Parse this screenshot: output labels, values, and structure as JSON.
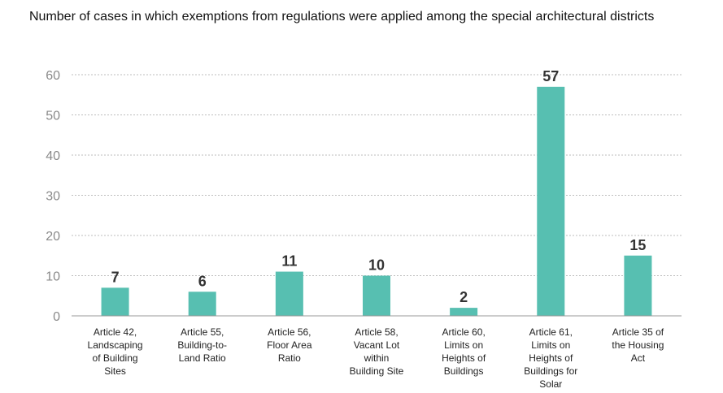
{
  "chart_data": {
    "type": "bar",
    "title": "Number of cases in which exemptions from regulations were applied among the special architectural districts",
    "xlabel": "",
    "ylabel": "",
    "ylim": [
      0,
      60
    ],
    "yticks": [
      "0",
      "10",
      "20",
      "30",
      "40",
      "50",
      "60"
    ],
    "grid": true,
    "legend": "none",
    "bar_color": "#57bfb1",
    "categories": [
      "Article 42, Landscaping of Building Sites",
      "Article 55, Building-to-Land Ratio",
      "Article 56, Floor Area Ratio",
      "Article 58, Vacant Lot within Building Site",
      "Article 60, Limits on Heights of Buildings",
      "Article 61, Limits on Heights of Buildings for Solar",
      "Article 35 of the Housing Act"
    ],
    "category_lines": [
      [
        "Article 42,",
        "Landscaping",
        "of Building",
        "Sites"
      ],
      [
        "Article 55,",
        "Building-to-",
        "Land Ratio"
      ],
      [
        "Article 56,",
        "Floor Area",
        "Ratio"
      ],
      [
        "Article 58,",
        "Vacant Lot",
        "within",
        "Building Site"
      ],
      [
        "Article 60,",
        "Limits on",
        "Heights of",
        "Buildings"
      ],
      [
        "Article 61,",
        "Limits on",
        "Heights of",
        "Buildings for",
        "Solar"
      ],
      [
        "Article 35 of",
        "the Housing",
        "Act"
      ]
    ],
    "values": [
      7,
      6,
      11,
      10,
      2,
      57,
      15
    ],
    "data_labels": [
      "7",
      "6",
      "11",
      "10",
      "2",
      "57",
      "15"
    ]
  }
}
